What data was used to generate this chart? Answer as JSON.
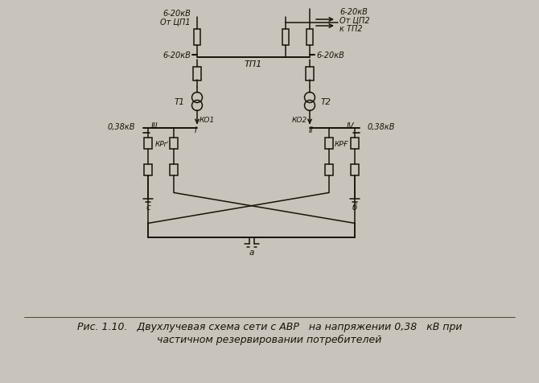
{
  "bg_color": "#c8c4bc",
  "inner_bg": "#d8d4cc",
  "line_color": "#1a1208",
  "text_color": "#1a1208",
  "fig_width": 6.7,
  "fig_height": 4.77,
  "caption_line1": "Рис. 1.10.   Двухлучевая схема сети с АВР   на напряжении 0,38   кВ при",
  "caption_line2": "частичном резервировании потребителей",
  "label_T1": "T1",
  "label_T2": "T2",
  "label_TP1": "ТП1",
  "label_KO1": "КО1",
  "label_KO2": "КО2",
  "label_KP1": "КРґ",
  "label_KP2": "КРҒ",
  "label_I": "I",
  "label_II": "II",
  "label_III": "III",
  "label_IV": "IV",
  "label_a": "а",
  "label_b": "б",
  "label_c": "с",
  "label_038kV_left": "0,38кВ",
  "label_038kV_right": "0,38кВ",
  "label_620kV_1": "6-20кВ",
  "label_620kV_2": "6-20кВ",
  "label_620kV_3": "6-20кВ",
  "label_620kV_4": "6-20кВ",
  "label_otCP1": "От ЦП1",
  "label_otCP2": "От ЦП2",
  "label_kTP2": "к ТП2"
}
